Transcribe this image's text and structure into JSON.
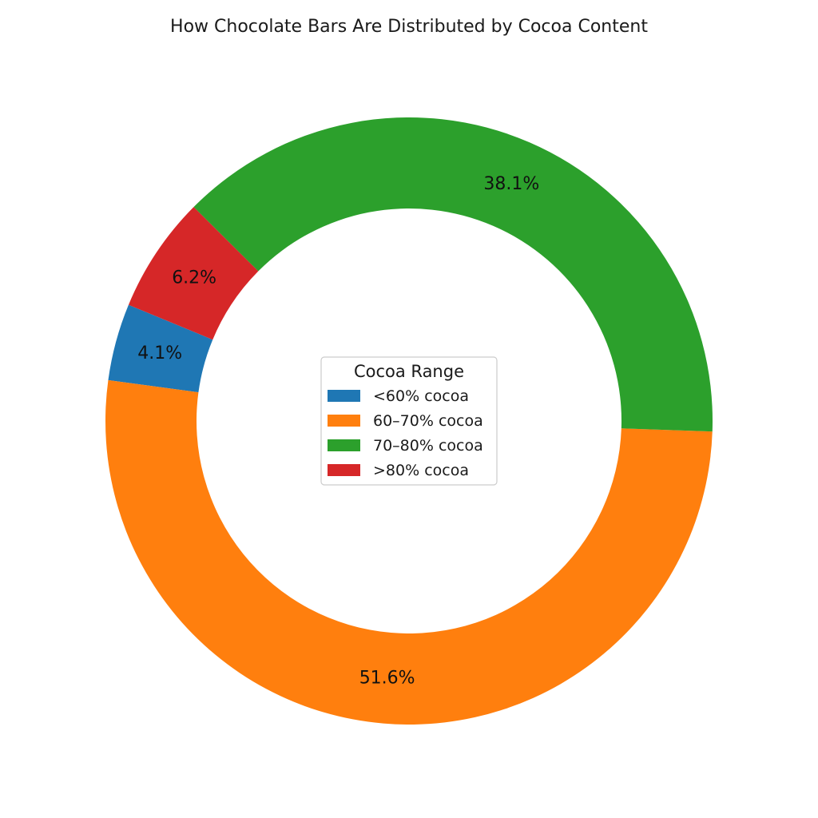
{
  "chart_data": {
    "type": "pie",
    "title": "How Chocolate Bars Are Distributed by Cocoa Content",
    "donut": true,
    "categories": [
      "<60% cocoa",
      "60–70% cocoa",
      "70–80% cocoa",
      ">80% cocoa"
    ],
    "values": [
      4.1,
      51.6,
      38.1,
      6.2
    ],
    "value_labels": [
      "4.1%",
      "51.6%",
      "38.1%",
      "6.2%"
    ],
    "colors": [
      "#1f77b4",
      "#ff7f0e",
      "#2ca02c",
      "#d62728"
    ],
    "legend": {
      "title": "Cocoa Range",
      "placement": "center"
    }
  }
}
